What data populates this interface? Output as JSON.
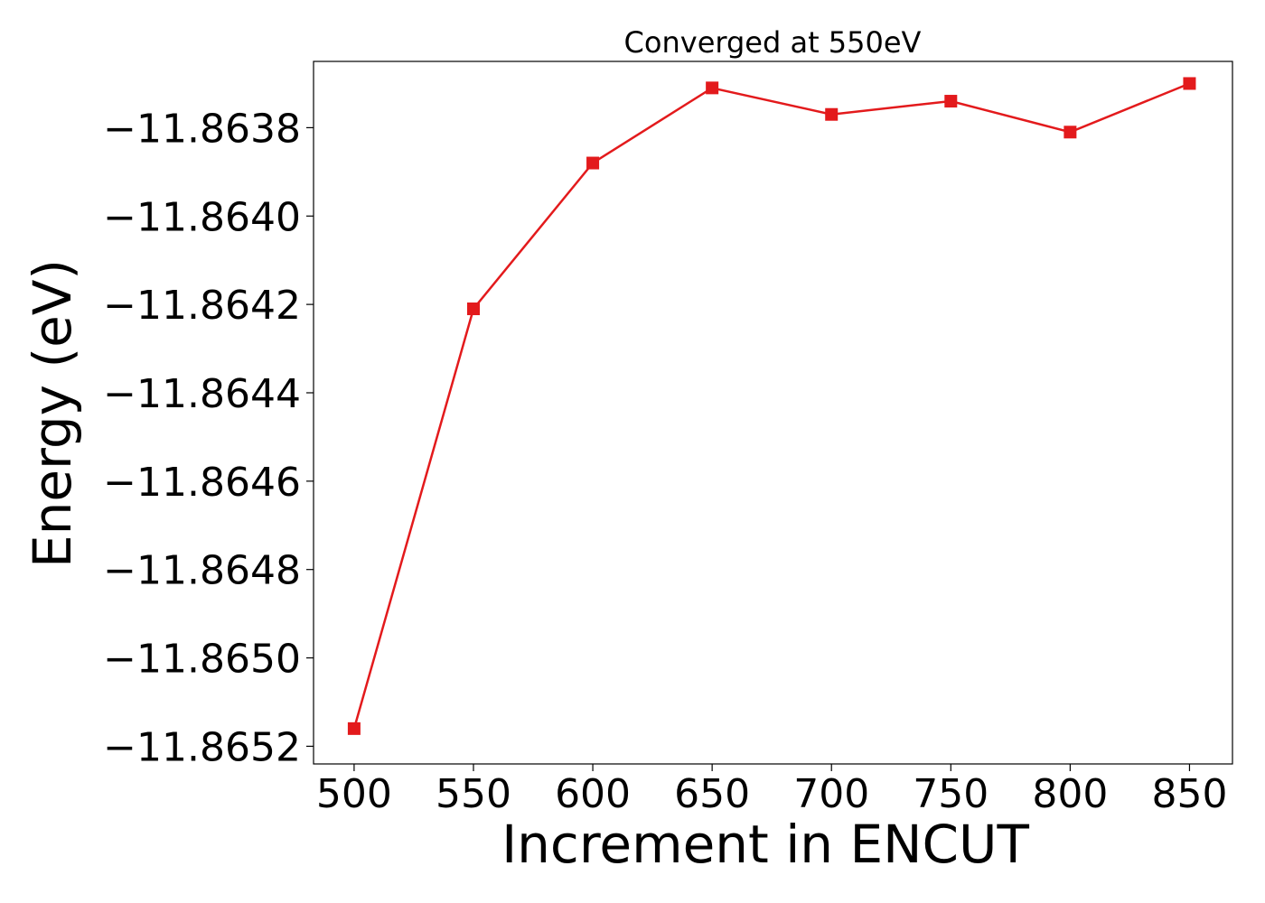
{
  "chart_data": {
    "type": "line",
    "title": "Converged at 550eV",
    "xlabel": "Increment in ENCUT",
    "ylabel": "Energy (eV)",
    "x": [
      500,
      550,
      600,
      650,
      700,
      750,
      800,
      850
    ],
    "series": [
      {
        "values": [
          -11.86516,
          -11.86421,
          -11.86388,
          -11.86371,
          -11.86377,
          -11.86374,
          -11.86381,
          -11.8637
        ]
      }
    ],
    "x_ticks": [
      500,
      550,
      600,
      650,
      700,
      750,
      800,
      850
    ],
    "x_tick_labels": [
      "500",
      "550",
      "600",
      "650",
      "700",
      "750",
      "800",
      "850"
    ],
    "y_ticks": [
      -11.8638,
      -11.864,
      -11.8642,
      -11.8644,
      -11.8646,
      -11.8648,
      -11.865,
      -11.8652
    ],
    "y_tick_labels": [
      "−11.8638",
      "−11.8640",
      "−11.8642",
      "−11.8644",
      "−11.8646",
      "−11.8648",
      "−11.8650",
      "−11.8652"
    ],
    "xlim": [
      483,
      868
    ],
    "ylim": [
      -11.86524,
      -11.86365
    ],
    "grid": false,
    "line_color": "#e31a1c",
    "marker": "square"
  }
}
